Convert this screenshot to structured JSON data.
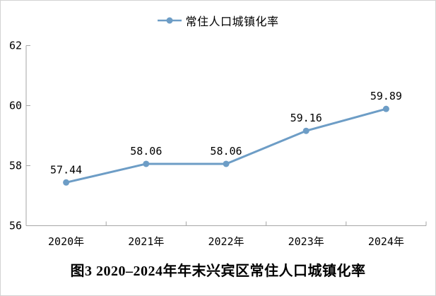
{
  "legend": {
    "label": "常住人口城镇化率"
  },
  "title": {
    "caption": "图3 2020–2024年年末兴宾区常住人口城镇化率"
  },
  "frame": {
    "border_color": "#d3d3d3",
    "background": "#ffffff"
  },
  "chart_data": {
    "type": "line",
    "title": "图3 2020–2024年年末兴宾区常住人口城镇化率",
    "categories": [
      "2020年",
      "2021年",
      "2022年",
      "2023年",
      "2024年"
    ],
    "series": [
      {
        "name": "常住人口城镇化率",
        "values": [
          57.44,
          58.06,
          58.06,
          59.16,
          59.89
        ],
        "data_labels": [
          "57.44",
          "58.06",
          "58.06",
          "59.16",
          "59.89"
        ],
        "color": "#6d9dc6",
        "marker": "circle"
      }
    ],
    "xlabel": "",
    "ylabel": "",
    "ylim": [
      56,
      62
    ],
    "yticks": [
      56,
      58,
      60,
      62
    ],
    "ytick_labels": [
      "56",
      "58",
      "60",
      "62"
    ],
    "grid": false,
    "legend_position": "top",
    "axis_color": "#a6a6a6",
    "text_color": "#000000"
  }
}
